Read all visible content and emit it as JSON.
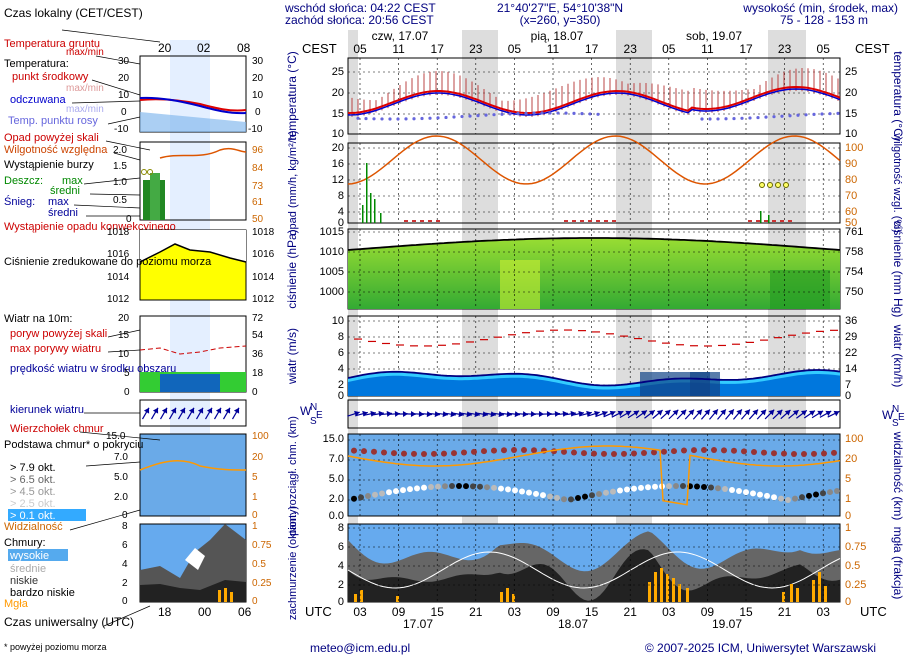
{
  "header": {
    "sunrise": "wschód słońca: 04:22 CEST",
    "sunset": "zachód słońca: 20:56 CEST",
    "coords": "21°40'27\"E, 54°10'38\"N",
    "grid": "(x=260, y=350)",
    "elevation_label": "wysokość (min, środek, max)",
    "elevation_values": "75 - 128 - 153 m"
  },
  "time_axis": {
    "cest": "CEST",
    "utc": "UTC",
    "day_labels_top": [
      "czw, 17.07",
      "pią, 18.07",
      "sob, 19.07"
    ],
    "hours_top": [
      "05",
      "11",
      "17",
      "23",
      "05",
      "11",
      "17",
      "23",
      "05",
      "11",
      "17",
      "23",
      "05"
    ],
    "hours_bottom": [
      "03",
      "09",
      "15",
      "21",
      "03",
      "09",
      "15",
      "21",
      "03",
      "09",
      "15",
      "21",
      "03"
    ],
    "dates_bottom": [
      "17.07",
      "18.07",
      "19.07"
    ]
  },
  "legend": {
    "local_time": "Czas lokalny (CET/CEST)",
    "local_hours": [
      "20",
      "02",
      "08"
    ],
    "utc_time": "Czas uniwersalny (UTC)",
    "utc_hours": [
      "18",
      "00",
      "06"
    ],
    "temp": {
      "soil": "Temperatura gruntu",
      "soil_sub": "max/min",
      "temperature": "Temperatura:",
      "mid": "punkt środkowy",
      "maxmin": "max/min",
      "felt": "odczuwana",
      "felt_maxmin": "max/min",
      "dew": "Temp. punktu rosy",
      "ticks": [
        "30",
        "20",
        "10",
        "0",
        "-10"
      ]
    },
    "precip": {
      "above": "Opad powyżej skali",
      "humidity": "Wilgotność względna",
      "storm": "Wystąpienie burzy",
      "rain": "Deszcz:",
      "rain_max": "max",
      "rain_mean": "średni",
      "snow": "Śnieg:",
      "snow_max": "max",
      "snow_mean": "średni",
      "conv": "Wystąpienie opadu konwekcyjnego",
      "ticks_left": [
        "2.0",
        "1.5",
        "1.0",
        "0.5",
        "0"
      ],
      "ticks_right": [
        "96",
        "84",
        "73",
        "61",
        "50"
      ]
    },
    "pressure": {
      "label": "Ciśnienie zredukowane do poziomu morza",
      "ticks_left": [
        "1018",
        "1016",
        "1014",
        "1012"
      ],
      "ticks_right": [
        "1018",
        "1016",
        "1014",
        "1012"
      ]
    },
    "wind": {
      "label": "Wiatr na 10m:",
      "gust_above": "poryw powyżej skali",
      "max_gust": "max porywy wiatru",
      "speed": "prędkość wiatru w środku obszaru",
      "ticks_left": [
        "20",
        "15",
        "10",
        "5",
        "0"
      ],
      "ticks_right": [
        "72",
        "54",
        "36",
        "18",
        "0"
      ],
      "direction": "kierunek wiatru"
    },
    "clouds_top": {
      "top": "Wierzchołek chmur",
      "base": "Podstawa chmur* o pokryciu",
      "c1": "> 7.9 okt.",
      "c2": "> 6.5 okt.",
      "c3": "> 4.5 okt.",
      "c4": "> 2.5 okt.",
      "c5": "> 0.1 okt.",
      "visibility": "Widzialność",
      "ticks_left": [
        "15.0",
        "7.0",
        "5.0",
        "2.0",
        "0"
      ],
      "ticks_right": [
        "100",
        "20",
        "5",
        "1",
        "0"
      ]
    },
    "clouds": {
      "label": "Chmury:",
      "high": "wysokie",
      "mid": "średnie",
      "low": "niskie",
      "very_low": "bardzo niskie",
      "fog": "Mgła",
      "ticks_left": [
        "8",
        "6",
        "4",
        "2",
        "0"
      ],
      "ticks_right": [
        "1",
        "0.75",
        "0.5",
        "0.25",
        "0"
      ]
    },
    "footnote": "* powyżej poziomu morza"
  },
  "panels": {
    "temperature": {
      "left": "temperatura (°C)",
      "right": "temperatura (°C)",
      "ticks": [
        "25",
        "20",
        "15",
        "10"
      ]
    },
    "precip": {
      "left": "opad (mm/h, kg/m²/h)",
      "right": "wilgotność wzgl. (%)",
      "ticks_left": [
        "20",
        "16",
        "12",
        "8",
        "4",
        "0"
      ],
      "ticks_right": [
        "100",
        "90",
        "80",
        "70",
        "60",
        "50"
      ]
    },
    "pressure": {
      "left": "ciśnienie (hPa)",
      "right": "ciśnienie (mm Hg)",
      "ticks_left": [
        "1015",
        "1010",
        "1005",
        "1000"
      ],
      "ticks_right": [
        "761",
        "758",
        "754",
        "750"
      ]
    },
    "wind": {
      "left": "wiatr (m/s)",
      "right": "wiatr (km/h)",
      "ticks_left": [
        "10",
        "8",
        "6",
        "4",
        "2",
        "0"
      ],
      "ticks_right": [
        "36",
        "29",
        "22",
        "14",
        "7",
        "0"
      ]
    },
    "compass": {
      "n": "N",
      "s": "S",
      "w": "W",
      "e": "E"
    },
    "clouds_top": {
      "left": "pion. rozciągł. chm. (km)",
      "right": "widzialność (km)",
      "ticks_left": [
        "15.0",
        "7.0",
        "5.0",
        "2.0",
        "0.0"
      ],
      "ticks_right": [
        "100",
        "20",
        "5",
        "1",
        "0"
      ]
    },
    "clouds": {
      "left": "zachmurzenie (oktanty)",
      "right": "mgła (frakcja)",
      "ticks_left": [
        "8",
        "6",
        "4",
        "2",
        "0"
      ],
      "ticks_right": [
        "1",
        "0.75",
        "0.5",
        "0.25",
        "0"
      ]
    }
  },
  "footer": {
    "email": "meteo@icm.edu.pl",
    "copyright": "© 2007-2025 ICM, Uniwersytet Warszawski"
  },
  "colors": {
    "temp_line": "#dd0000",
    "dew": "#6666dd",
    "felt": "#0000cc",
    "precip_green": "#008800",
    "humidity": "#dd5500",
    "pressure_fill": "#ffff00",
    "pressure_green": "#66cc33",
    "wind_fill": "#0066dd",
    "wind_light": "#33ccff",
    "wind_gust": "#cc0000",
    "cloud_bg": "#66aaee",
    "fog": "#ffaa00",
    "axis_blue": "#000080",
    "axis_orange": "#cc6600"
  }
}
